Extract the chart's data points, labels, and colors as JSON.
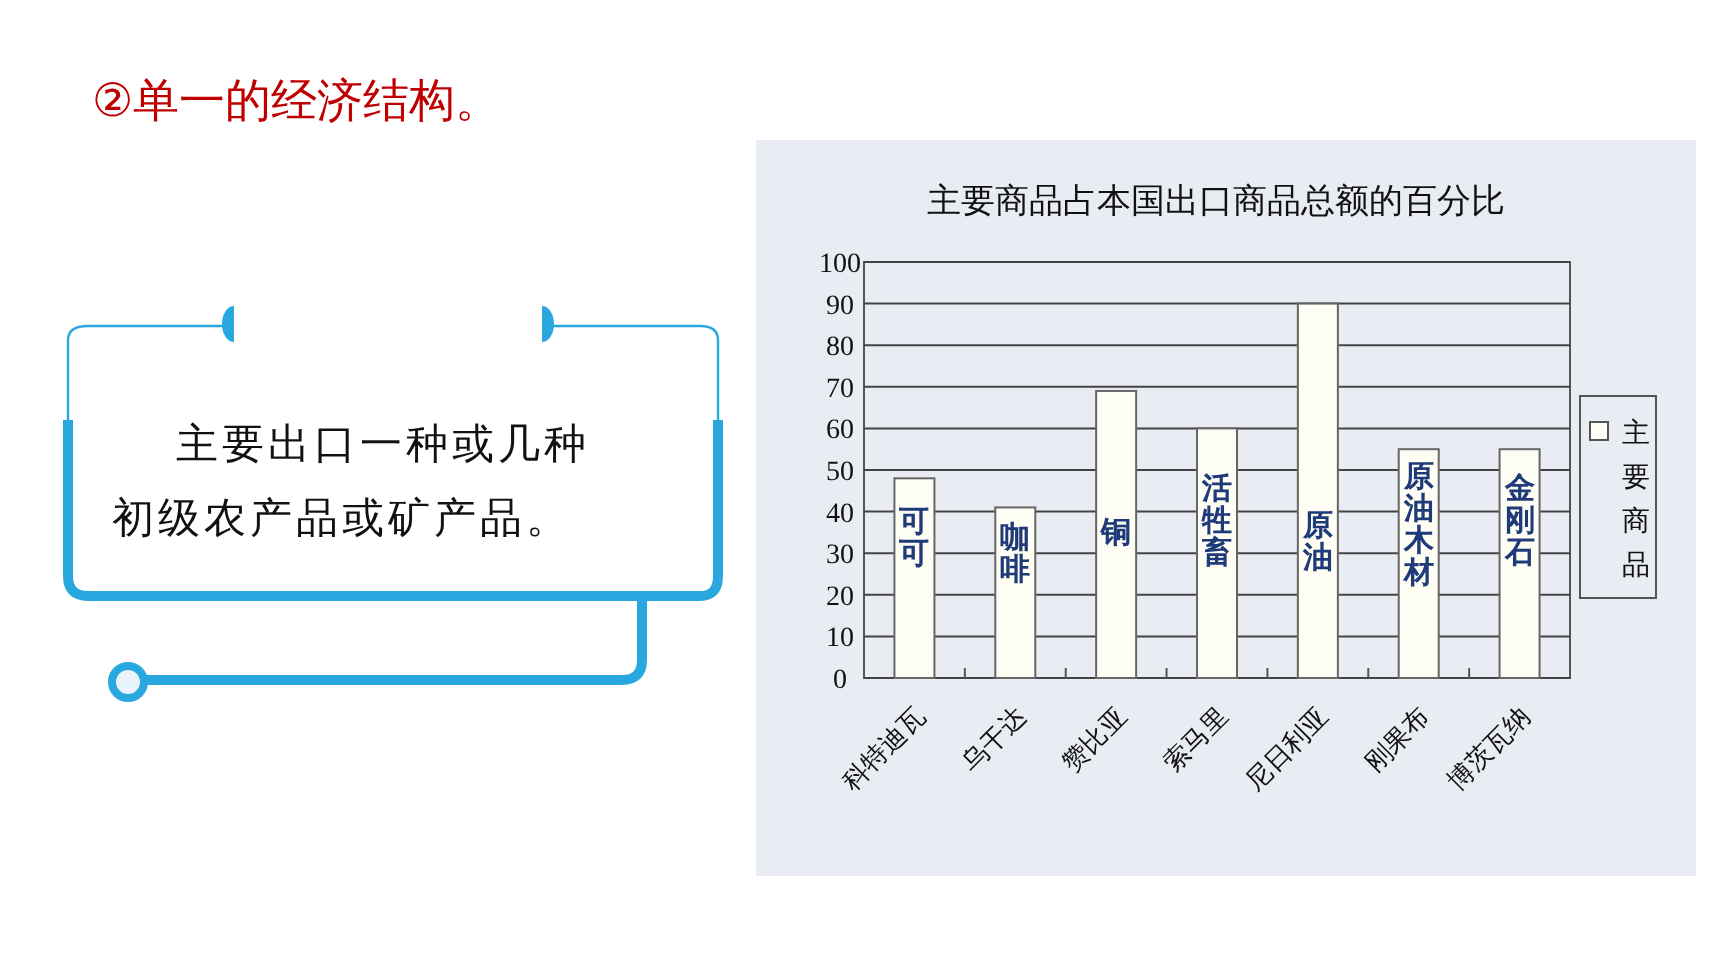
{
  "chart_data": {
    "type": "bar",
    "title": "主要商品占本国出口商品总额的百分比",
    "categories": [
      "科特迪瓦",
      "乌干达",
      "赞比亚",
      "索马里",
      "尼日利亚",
      "刚果布",
      "博茨瓦纳"
    ],
    "series": [
      {
        "name": "主要商品",
        "color": "#fffef5",
        "values": [
          48,
          41,
          69,
          60,
          90,
          55,
          55
        ]
      }
    ],
    "ylim": [
      0,
      100
    ],
    "yticks": [
      0,
      10,
      20,
      30,
      40,
      50,
      60,
      70,
      80,
      90,
      100
    ],
    "grid": "y",
    "legend": "right",
    "annotations": [
      "②单一的经济结构。",
      "主要出口一种或几种初级农产品或矿产品。",
      {
        "text": "可可",
        "x": "科特迪瓦",
        "y": 34
      },
      {
        "text": "咖啡",
        "x": "乌干达",
        "y": 30
      },
      {
        "text": "铜",
        "x": "赞比亚",
        "y": 35
      },
      {
        "text": "活牲畜",
        "x": "索马里",
        "y": 38
      },
      {
        "text": "原油",
        "x": "尼日利亚",
        "y": 33
      },
      {
        "text": "原油木材",
        "x": "刚果布",
        "y": 37
      },
      {
        "text": "金刚石",
        "x": "博茨瓦纳",
        "y": 38
      }
    ]
  }
}
